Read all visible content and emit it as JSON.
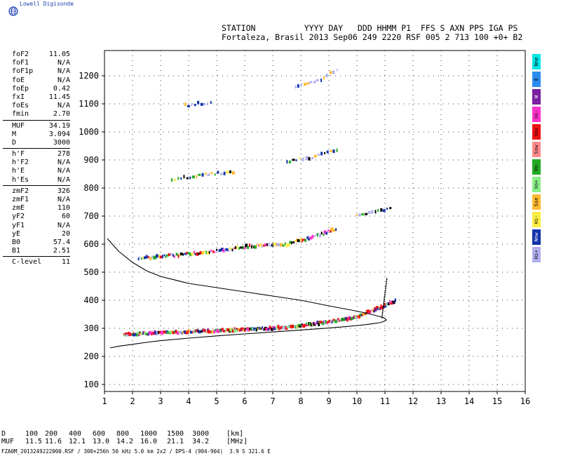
{
  "branding": {
    "logo_text": "Lowell Digisonde"
  },
  "header": {
    "line1": "STATION          YYYY DAY   DDD HHMM P1  FFS S AXN PPS IGA PS",
    "line2": "Fortaleza, Brasil 2013 Sep06 249 2220 RSF 005 2 713 100 +0+ B2"
  },
  "parameters": {
    "group1": [
      {
        "name": "foF2",
        "value": "11.05"
      },
      {
        "name": "foF1",
        "value": "N/A"
      },
      {
        "name": "foF1p",
        "value": "N/A"
      },
      {
        "name": "foE",
        "value": "N/A"
      },
      {
        "name": "foEp",
        "value": "0.42"
      },
      {
        "name": "fxI",
        "value": "11.45"
      },
      {
        "name": "foEs",
        "value": "N/A"
      },
      {
        "name": "fmin",
        "value": "2.70"
      }
    ],
    "group2": [
      {
        "name": "MUF",
        "value": "34.19"
      },
      {
        "name": "M",
        "value": "3.094"
      },
      {
        "name": "D",
        "value": "3000"
      }
    ],
    "group3": [
      {
        "name": "h'F",
        "value": "278"
      },
      {
        "name": "h'F2",
        "value": "N/A"
      },
      {
        "name": "h'E",
        "value": "N/A"
      },
      {
        "name": "h'Es",
        "value": "N/A"
      }
    ],
    "group4": [
      {
        "name": "zmF2",
        "value": "326"
      },
      {
        "name": "zmF1",
        "value": "N/A"
      },
      {
        "name": "zmE",
        "value": "110"
      },
      {
        "name": "yF2",
        "value": "60"
      },
      {
        "name": "yF1",
        "value": "N/A"
      },
      {
        "name": "yE",
        "value": "20"
      },
      {
        "name": "B0",
        "value": "57.4"
      },
      {
        "name": "B1",
        "value": "2.51"
      }
    ],
    "group5": [
      {
        "name": "C-level",
        "value": "11"
      }
    ]
  },
  "legend": [
    {
      "label": "Nne",
      "color": "#00e5e5"
    },
    {
      "label": "E",
      "color": "#2b8cf0"
    },
    {
      "label": "W",
      "color": "#7a1fa0"
    },
    {
      "label": "Vo-",
      "color": "#ff33cc"
    },
    {
      "label": "Vo+",
      "color": "#ee1111"
    },
    {
      "label": "Ssw",
      "color": "#ff8a8a"
    },
    {
      "label": "Vo-",
      "color": "#22aa22"
    },
    {
      "label": "Vo+",
      "color": "#88ee88"
    },
    {
      "label": "Sse",
      "color": "#ffbb33"
    },
    {
      "label": "Hi-",
      "color": "#ffee44"
    },
    {
      "label": "Nnw",
      "color": "#1133aa"
    },
    {
      "label": "Hi+",
      "color": "#b0b0ee"
    }
  ],
  "muf_table": {
    "d_label": "D",
    "d_values": [
      "100",
      "200",
      "400",
      "600",
      "800",
      "1000",
      "1500",
      "3000"
    ],
    "d_unit": "[km]",
    "muf_label": "MUF",
    "muf_values": [
      "11.5",
      "11.6",
      "12.1",
      "13.0",
      "14.2",
      "16.0",
      "21.1",
      "34.2"
    ],
    "muf_unit": "[MHz]"
  },
  "footer": {
    "text": "FZA0M_2013249222000.RSF / 300×256h 50 kHz 5.0 km 2x2 / DPS-4 (904-904)  3.9 S 321.6 E"
  },
  "chart_data": {
    "type": "scatter",
    "title": "",
    "xlabel": "",
    "ylabel": "",
    "xlim": [
      1,
      16
    ],
    "ylim": [
      75,
      1290
    ],
    "x_ticks": [
      1,
      2,
      3,
      4,
      5,
      6,
      7,
      8,
      9,
      10,
      11,
      12,
      13,
      14,
      15,
      16
    ],
    "y_ticks": [
      100,
      200,
      300,
      400,
      500,
      600,
      700,
      800,
      900,
      1000,
      1100,
      1200
    ],
    "grid": "dotted",
    "series": [
      {
        "color_key": "mixed",
        "x_start": [
          1.7,
          2.1,
          2.5,
          4.0,
          7.0,
          8.0,
          8.8,
          10.0
        ],
        "x_end": [
          2.1,
          2.5,
          4.0,
          7.0,
          8.0,
          8.8,
          10.0,
          11.4
        ],
        "h_start": [
          278,
          280,
          282,
          288,
          300,
          310,
          320,
          340
        ],
        "h_end": [
          280,
          282,
          288,
          300,
          310,
          320,
          340,
          398
        ]
      },
      {
        "color_key": "second-hop",
        "x_start": [
          2.2,
          3.5,
          5.0,
          6.0,
          7.5,
          8.3
        ],
        "x_end": [
          3.5,
          5.0,
          6.0,
          7.5,
          8.3,
          9.3
        ],
        "h_start": [
          550,
          560,
          575,
          590,
          600,
          620
        ],
        "h_end": [
          560,
          575,
          590,
          600,
          620,
          655
        ]
      },
      {
        "color_key": "third-hop",
        "x_start": [
          3.4,
          4.5,
          7.5,
          8.2,
          10.0
        ],
        "x_end": [
          4.5,
          5.7,
          8.2,
          9.4,
          11.3
        ],
        "h_start": [
          830,
          845,
          895,
          905,
          705
        ],
        "h_end": [
          845,
          860,
          905,
          935,
          730
        ]
      },
      {
        "color_key": "fourth-hop",
        "x_start": [
          7.8,
          8.6,
          3.9
        ],
        "x_end": [
          8.6,
          9.4,
          4.9
        ],
        "h_start": [
          1160,
          1180,
          1095
        ],
        "h_end": [
          1180,
          1230,
          1105
        ]
      }
    ],
    "profile": {
      "x": [
        1.2,
        1.5,
        2.0,
        2.5,
        3.0,
        4.0,
        5.0,
        6.0,
        7.0,
        8.0,
        9.0,
        9.6,
        10.0,
        10.3,
        10.6,
        10.8,
        10.95,
        11.05,
        10.95,
        10.7,
        10.3,
        9.8,
        9.0,
        8.0,
        7.0,
        6.0,
        5.0,
        4.0,
        3.0,
        2.5,
        2.0,
        1.5,
        1.1
      ],
      "h": [
        230,
        236,
        243,
        250,
        256,
        265,
        273,
        280,
        287,
        294,
        301,
        306,
        310,
        313,
        317,
        320,
        324,
        330,
        338,
        345,
        355,
        365,
        380,
        400,
        415,
        430,
        445,
        460,
        485,
        505,
        535,
        575,
        620
      ]
    }
  }
}
